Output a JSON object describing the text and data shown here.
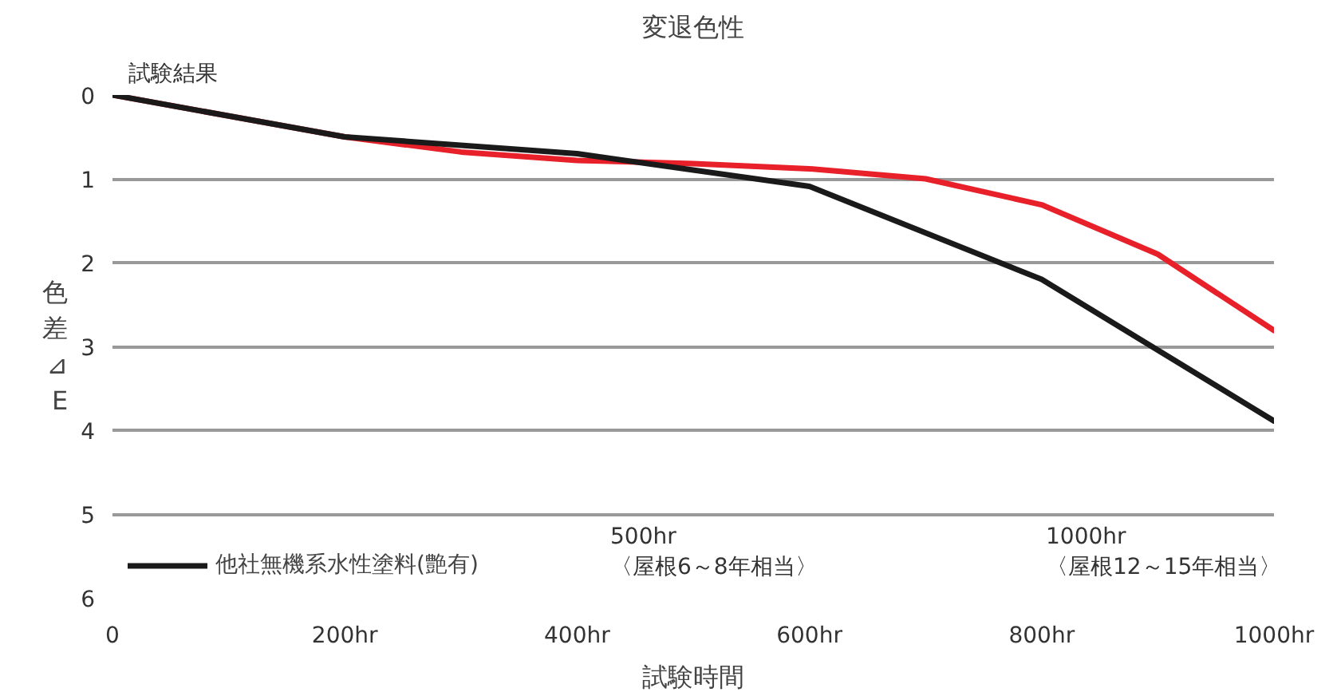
{
  "chart_data": {
    "type": "line",
    "title": "変退色性",
    "xlabel": "試験時間",
    "ylabel": "色差⊿E",
    "x": [
      0,
      100,
      200,
      300,
      400,
      500,
      600,
      700,
      800,
      900,
      1000
    ],
    "series": [
      {
        "color": "#e8202a",
        "values": [
          0,
          0.25,
          0.5,
          0.68,
          0.78,
          0.82,
          0.88,
          1.0,
          1.31,
          1.9,
          2.81
        ]
      },
      {
        "name": "他社無機系水性塗料(艶有)",
        "color": "#1a1a1a",
        "x": [
          0,
          200,
          400,
          600,
          800,
          1000
        ],
        "values": [
          0,
          0.5,
          0.7,
          1.09,
          2.2,
          3.89
        ]
      }
    ],
    "xlim": [
      0,
      1000
    ],
    "ylim": [
      6,
      0
    ],
    "xticks": [
      0,
      {
        "value": 200,
        "label": "200hr"
      },
      {
        "value": 400,
        "label": "400hr"
      },
      {
        "value": 600,
        "label": "600hr"
      },
      {
        "value": 800,
        "label": "800hr"
      },
      {
        "value": 1000,
        "label": "1000hr"
      }
    ],
    "yticks": [
      0,
      1,
      2,
      3,
      4,
      5,
      6
    ],
    "grid": "y",
    "legend": "bottom left",
    "marker": "none",
    "line_style": "solid",
    "annotations": [
      "試験結果",
      "500hr\n〈屋根6～8年相当〉",
      "1000hr\n〈屋根12～15年相当〉"
    ]
  }
}
